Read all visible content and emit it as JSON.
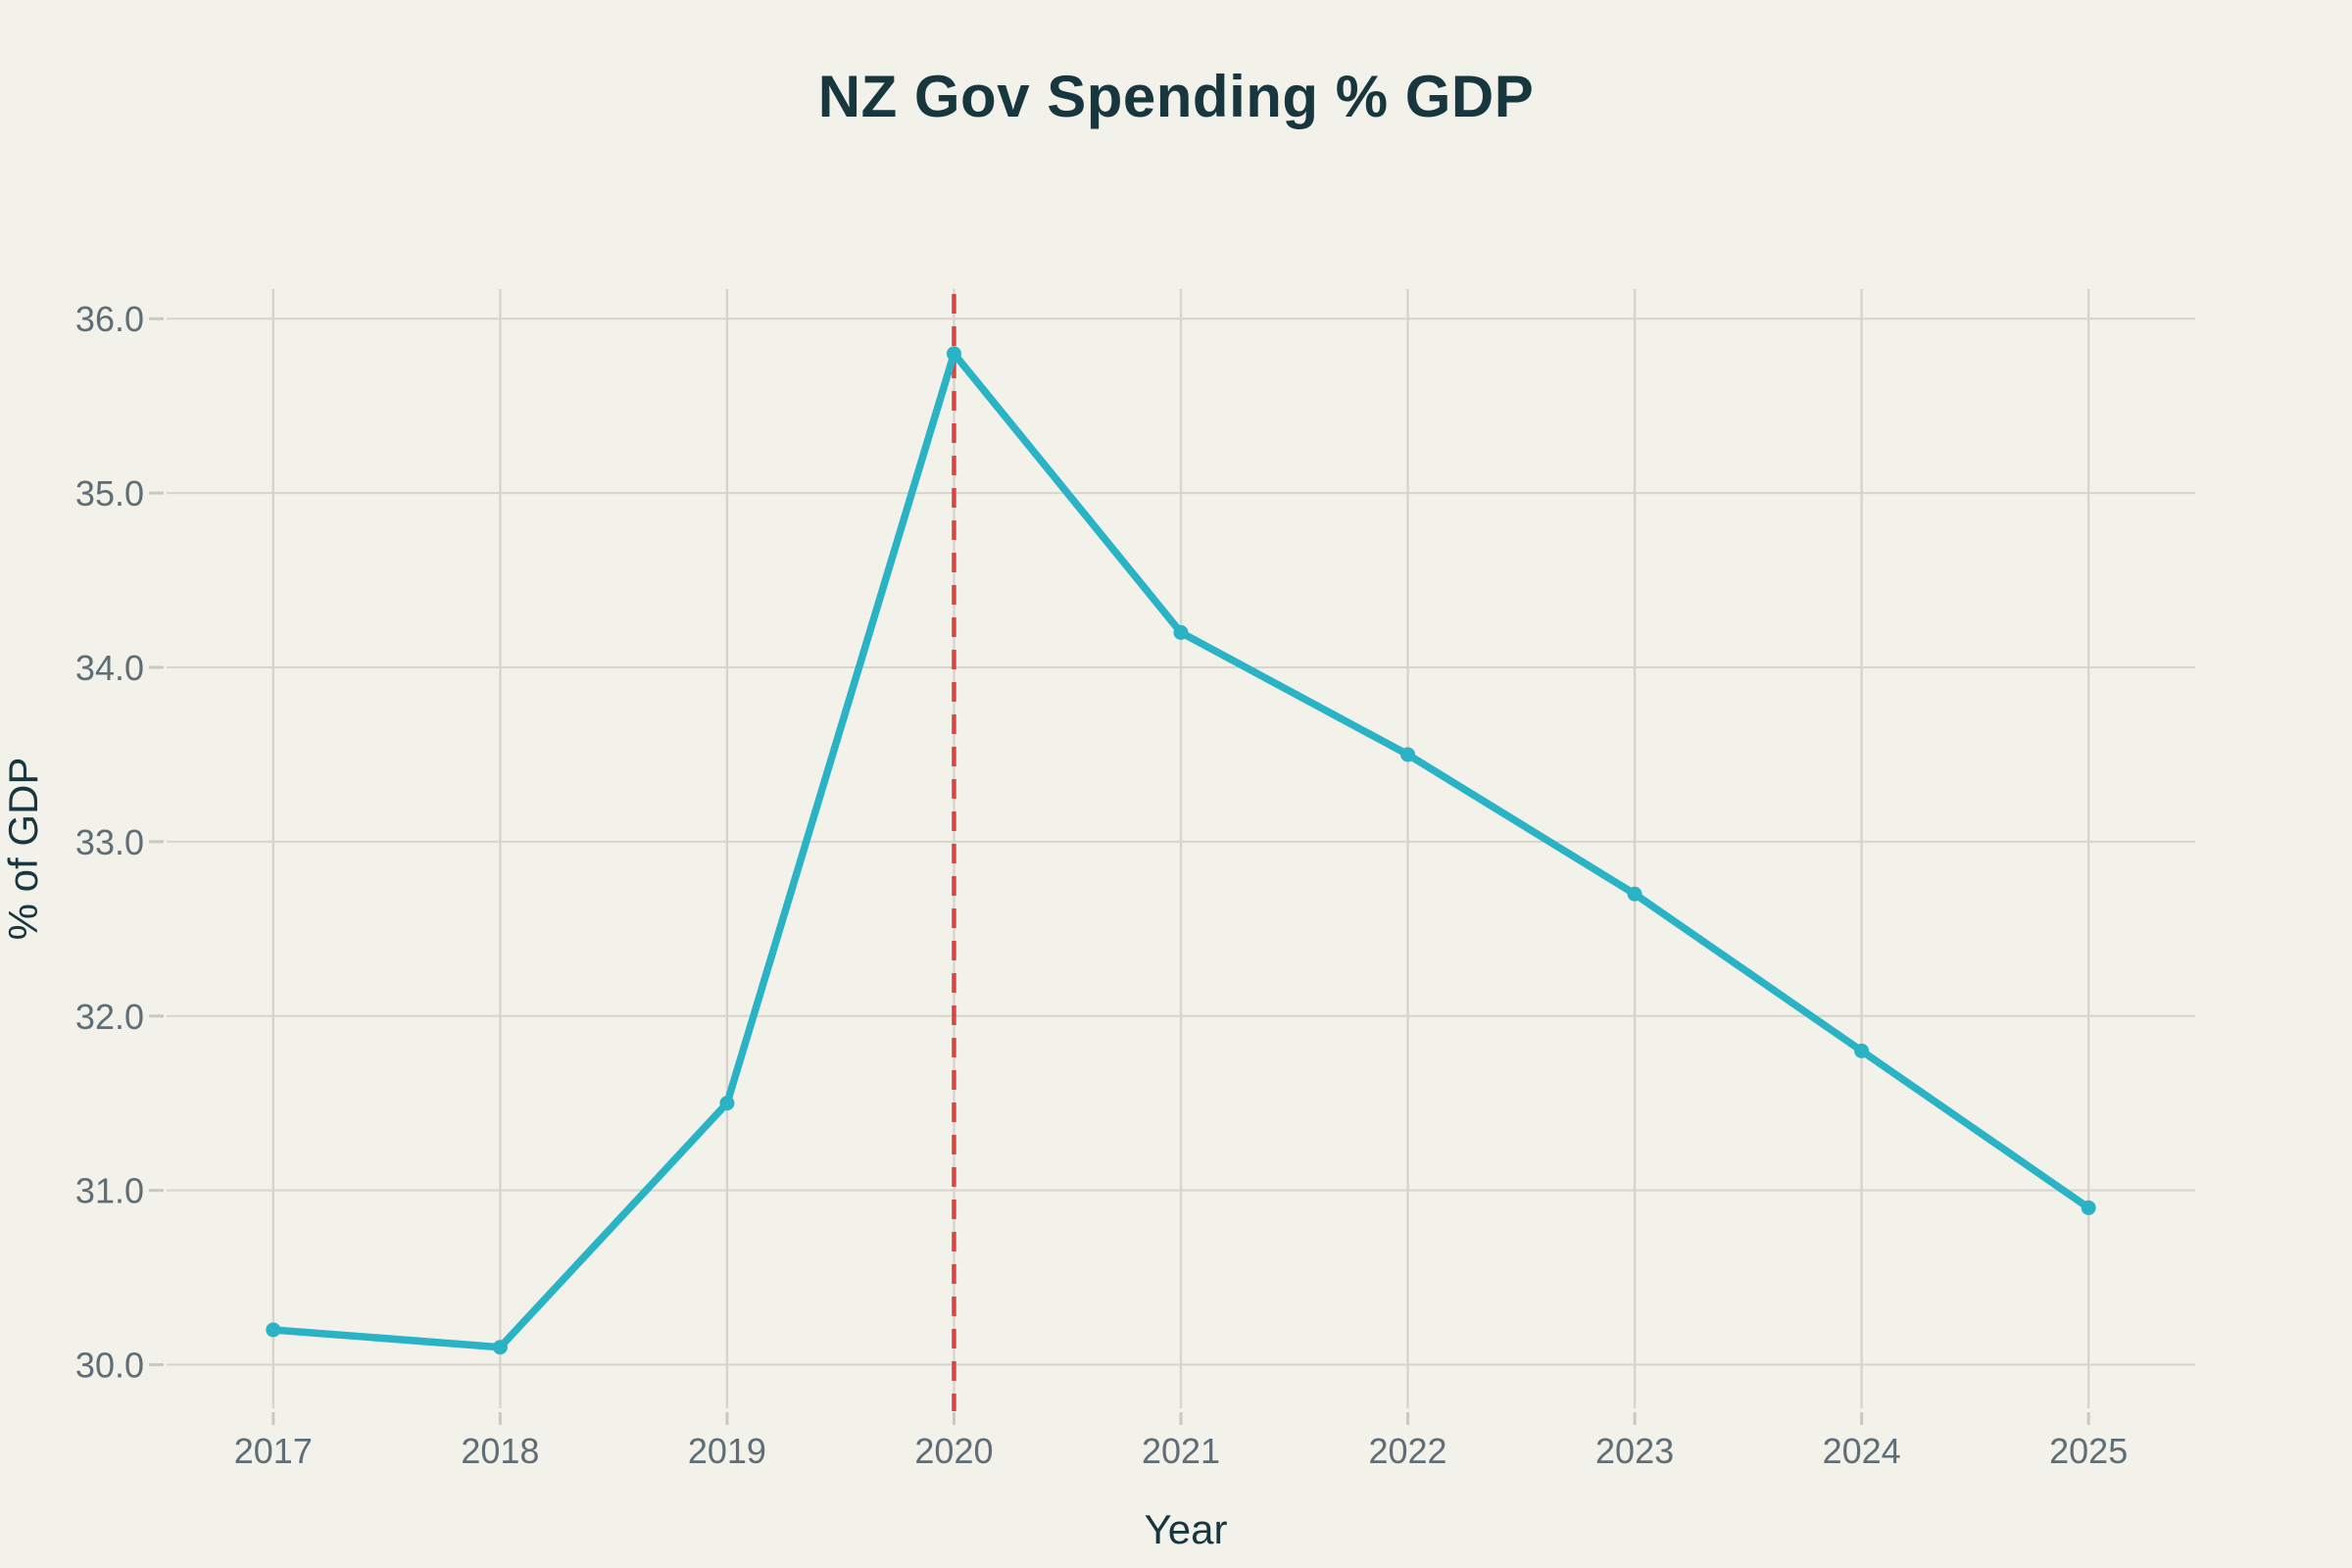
{
  "chart_data": {
    "type": "line",
    "title": "NZ Gov Spending % GDP",
    "xlabel": "Year",
    "ylabel": "% of GDP",
    "x": [
      2017,
      2018,
      2019,
      2020,
      2021,
      2022,
      2023,
      2024,
      2025
    ],
    "x_tick_labels": [
      "2017",
      "2018",
      "2019",
      "2020",
      "2021",
      "2022",
      "2023",
      "2024",
      "2025"
    ],
    "series": [
      {
        "name": "NZ Gov Spending % GDP",
        "values": [
          30.2,
          30.1,
          31.5,
          35.8,
          34.2,
          33.5,
          32.7,
          31.8,
          30.9
        ],
        "color": "#2ab3c5",
        "markers": true
      }
    ],
    "yticks": [
      30,
      31,
      32,
      33,
      34,
      35,
      36
    ],
    "y_tick_labels": [
      "30.0",
      "31.0",
      "32.0",
      "33.0",
      "34.0",
      "35.0",
      "36.0"
    ],
    "ylim": [
      29.75,
      36.17
    ],
    "xlim": [
      2016.53,
      2025.47
    ],
    "grid": true,
    "legend": false,
    "annotations": [
      {
        "type": "vline",
        "x": 2020,
        "style": "dashed",
        "color": "#d94543"
      }
    ]
  },
  "colors": {
    "background": "#f2f1ea",
    "gridline": "#d7d4cd",
    "tick_mark": "#cbc8c2",
    "tick_label": "#5f6e75",
    "heading_text": "#17363d",
    "axis_title_text": "#17363d",
    "series_line": "#2ab3c5",
    "reference_line": "#d94543"
  }
}
